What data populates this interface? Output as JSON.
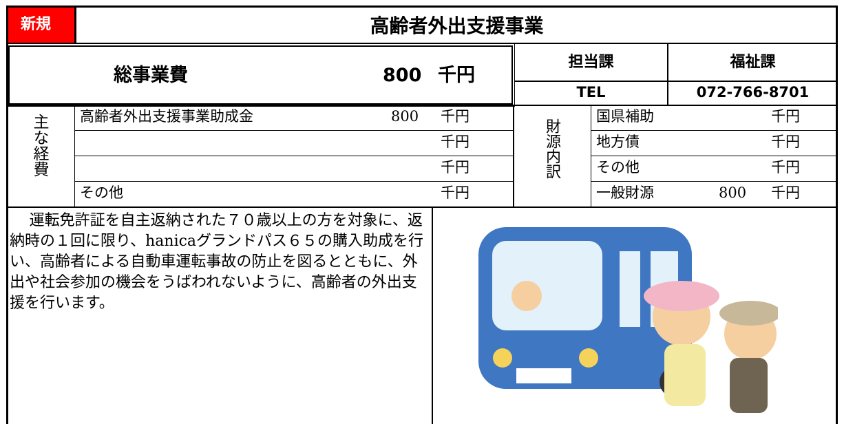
{
  "header": {
    "badge": "新規",
    "title": "高齢者外出支援事業"
  },
  "total": {
    "label": "総事業費",
    "amount": 800,
    "unit": "千円"
  },
  "department": {
    "label": "担当課",
    "name": "福祉課",
    "tel_label": "TEL",
    "tel": "072-766-8701"
  },
  "expenses": {
    "label": "主な経費",
    "rows": [
      {
        "name": "高齢者外出支援事業助成金",
        "amount": 800,
        "unit": "千円"
      },
      {
        "unit": "千円"
      },
      {
        "unit": "千円"
      },
      {
        "name": "その他",
        "unit": "千円"
      }
    ]
  },
  "funding": {
    "label": "財源内訳",
    "rows": [
      {
        "name": "国県補助",
        "unit": "千円"
      },
      {
        "name": "地方債",
        "unit": "千円"
      },
      {
        "name": "その他",
        "unit": "千円"
      },
      {
        "name": "一般財源",
        "amount": 800,
        "unit": "千円"
      }
    ]
  },
  "description": "運転免許証を自主返納された７０歳以上の方を対象に、返納時の１回に限り、hanicaグランドパス６５の購入助成を行い、高齢者による自動車運転事故の防止を図るとともに、外出や社会参加の機会をうばわれないように、高齢者の外出支援を行います。"
}
